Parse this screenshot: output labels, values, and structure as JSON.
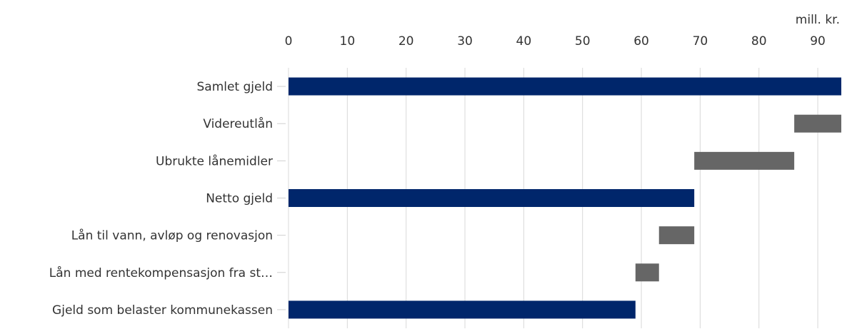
{
  "chart_data": {
    "type": "bar",
    "orientation": "horizontal",
    "variant": "waterfall",
    "unit_label": "mill. kr.",
    "xlim": [
      0,
      94
    ],
    "x_ticks": [
      0,
      10,
      20,
      30,
      40,
      50,
      60,
      70,
      80,
      90
    ],
    "grid": true,
    "axis_position": "top",
    "colors": {
      "total": "#00266b",
      "step": "#666666"
    },
    "categories": [
      "Samlet gjeld",
      "Videreutlån",
      "Ubrukte lånemidler",
      "Netto gjeld",
      "Lån til vann, avløp og renovasjon",
      "Lån med rentekompensasjon fra st…",
      "Gjeld som belaster kommunekassen"
    ],
    "bars": [
      {
        "category": "Samlet gjeld",
        "start": 0,
        "end": 94,
        "kind": "total"
      },
      {
        "category": "Videreutlån",
        "start": 86,
        "end": 94,
        "kind": "step"
      },
      {
        "category": "Ubrukte lånemidler",
        "start": 69,
        "end": 86,
        "kind": "step"
      },
      {
        "category": "Netto gjeld",
        "start": 0,
        "end": 69,
        "kind": "total"
      },
      {
        "category": "Lån til vann, avløp og renovasjon",
        "start": 63,
        "end": 69,
        "kind": "step"
      },
      {
        "category": "Lån med rentekompensasjon fra st…",
        "start": 59,
        "end": 63,
        "kind": "step"
      },
      {
        "category": "Gjeld som belaster kommunekassen",
        "start": 0,
        "end": 59,
        "kind": "total"
      }
    ]
  }
}
